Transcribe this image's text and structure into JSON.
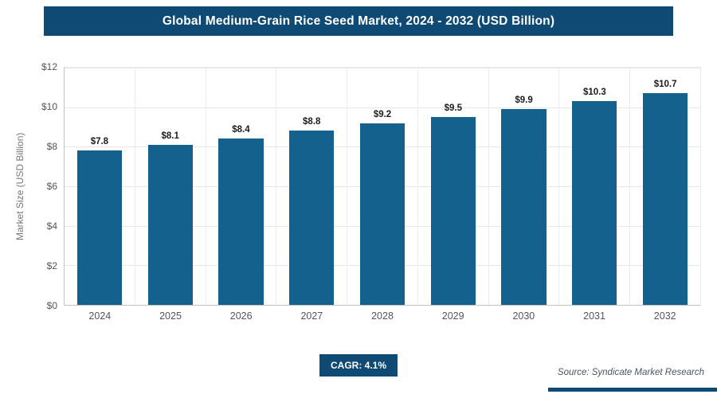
{
  "header": {
    "title": "Global Medium-Grain Rice Seed Market, 2024 - 2032 (USD Billion)"
  },
  "colors": {
    "header_bg": "#0e4a74",
    "bar": "#15618d",
    "accent": "#0e4a74"
  },
  "chart_data": {
    "type": "bar",
    "title": "Global Medium-Grain Rice Seed Market, 2024 - 2032 (USD Billion)",
    "categories": [
      "2024",
      "2025",
      "2026",
      "2027",
      "2028",
      "2029",
      "2030",
      "2031",
      "2032"
    ],
    "values": [
      7.8,
      8.1,
      8.4,
      8.8,
      9.2,
      9.5,
      9.9,
      10.3,
      10.7
    ],
    "labels": [
      "$7.8",
      "$8.1",
      "$8.4",
      "$8.8",
      "$9.2",
      "$9.5",
      "$9.9",
      "$10.3",
      "$10.7"
    ],
    "xlabel": "",
    "ylabel": "Market Size (USD Billion)",
    "ylim": [
      0,
      12
    ],
    "yticks": [
      "$0",
      "$2",
      "$4",
      "$6",
      "$8",
      "$10",
      "$12"
    ],
    "grid": true,
    "legend": "none",
    "bar_color": "#15618d"
  },
  "footer": {
    "cagr_label": "CAGR: 4.1%",
    "source": "Source: Syndicate Market Research"
  }
}
